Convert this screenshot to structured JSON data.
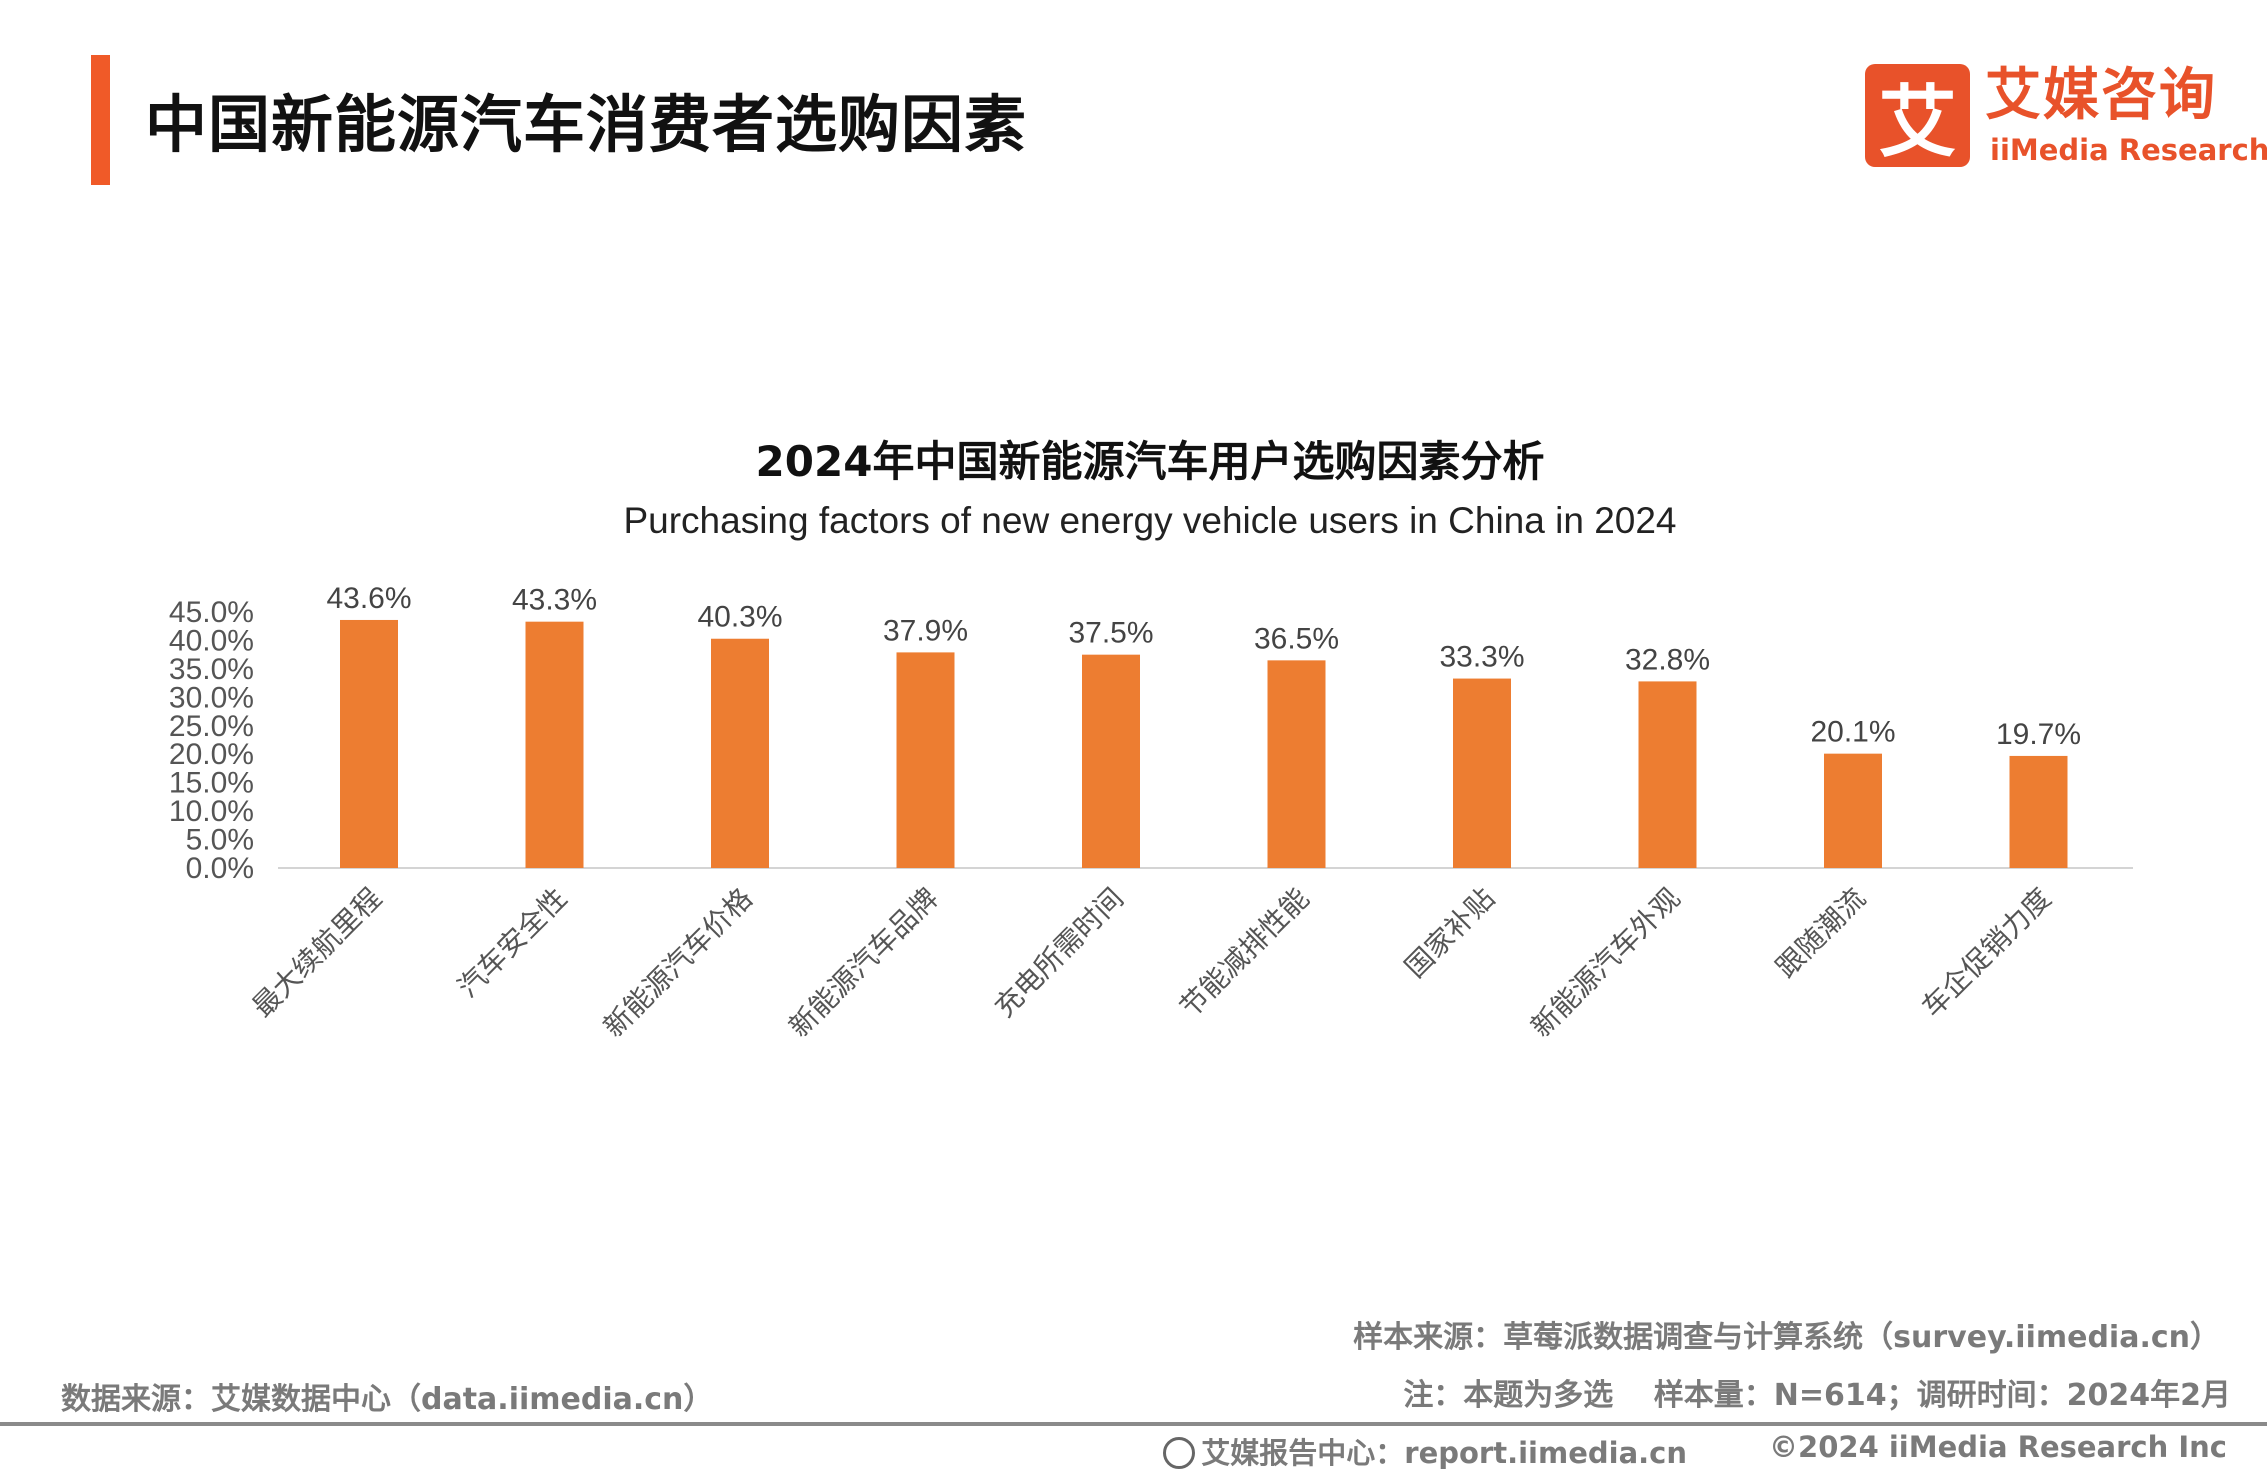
{
  "header": {
    "title": "中国新能源汽车消费者选购因素",
    "accent_color": "#f05a28"
  },
  "logo": {
    "mark": "艾",
    "name_cn": "艾媒咨询",
    "name_en": "iiMedia Research",
    "color": "#e8522a"
  },
  "chart_data": {
    "type": "bar",
    "title": "2024年中国新能源汽车用户选购因素分析",
    "subtitle": "Purchasing factors of new energy vehicle users in China in 2024",
    "categories": [
      "最大续航里程",
      "汽车安全性",
      "新能源汽车价格",
      "新能源汽车品牌",
      "充电所需时间",
      "节能减排性能",
      "国家补贴",
      "新能源汽车外观",
      "跟随潮流",
      "车企促销力度"
    ],
    "values": [
      43.6,
      43.3,
      40.3,
      37.9,
      37.5,
      36.5,
      33.3,
      32.8,
      20.1,
      19.7
    ],
    "value_labels": [
      "43.6%",
      "43.3%",
      "40.3%",
      "37.9%",
      "37.5%",
      "36.5%",
      "33.3%",
      "32.8%",
      "20.1%",
      "19.7%"
    ],
    "yticks": [
      "0.0%",
      "5.0%",
      "10.0%",
      "15.0%",
      "20.0%",
      "25.0%",
      "30.0%",
      "35.0%",
      "40.0%",
      "45.0%"
    ],
    "ylim": [
      0,
      45
    ],
    "unit": "%",
    "grid": false,
    "bar_color": "#ed7d31"
  },
  "footer": {
    "sample_source": "样本来源：草莓派数据调查与计算系统（survey.iimedia.cn）",
    "note": "注：本题为多选　 样本量：N=614；调研时间：2024年2月",
    "data_source": "数据来源：艾媒数据中心（data.iimedia.cn）",
    "report_center": "艾媒报告中心：report.iimedia.cn",
    "copyright": "©2024  iiMedia Research  Inc"
  }
}
